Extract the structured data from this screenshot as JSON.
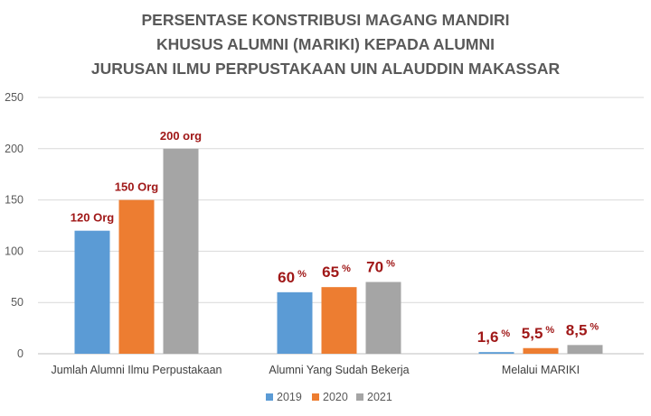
{
  "chart_data": {
    "type": "bar",
    "title_lines": [
      "PERSENTASE KONSTRIBUSI MAGANG MANDIRI",
      "KHUSUS ALUMNI (MARIKI) KEPADA ALUMNI",
      "JURUSAN ILMU PERPUSTAKAAN UIN ALAUDDIN MAKASSAR"
    ],
    "categories": [
      "Jumlah Alumni Ilmu Perpustakaan",
      "Alumni Yang Sudah Bekerja",
      "Melalui MARIKI"
    ],
    "series": [
      {
        "name": "2019",
        "color": "#5B9BD5",
        "values": [
          120,
          60,
          1.6
        ],
        "labels": [
          "120 Org",
          "60",
          "1,6"
        ],
        "suffixes": [
          "",
          "%",
          "%"
        ]
      },
      {
        "name": "2020",
        "color": "#ED7D31",
        "values": [
          150,
          65,
          5.5
        ],
        "labels": [
          "150 Org",
          "65",
          "5,5"
        ],
        "suffixes": [
          "",
          "%",
          "%"
        ]
      },
      {
        "name": "2021",
        "color": "#A5A5A5",
        "values": [
          200,
          70,
          8.5
        ],
        "labels": [
          "200 org",
          "70",
          "8,5"
        ],
        "suffixes": [
          "",
          "%",
          "%"
        ]
      }
    ],
    "ylim": [
      0,
      250
    ],
    "yticks": [
      0,
      50,
      100,
      150,
      200,
      250
    ],
    "grid": true,
    "legend_position": "bottom",
    "label_color": "#A01818"
  }
}
